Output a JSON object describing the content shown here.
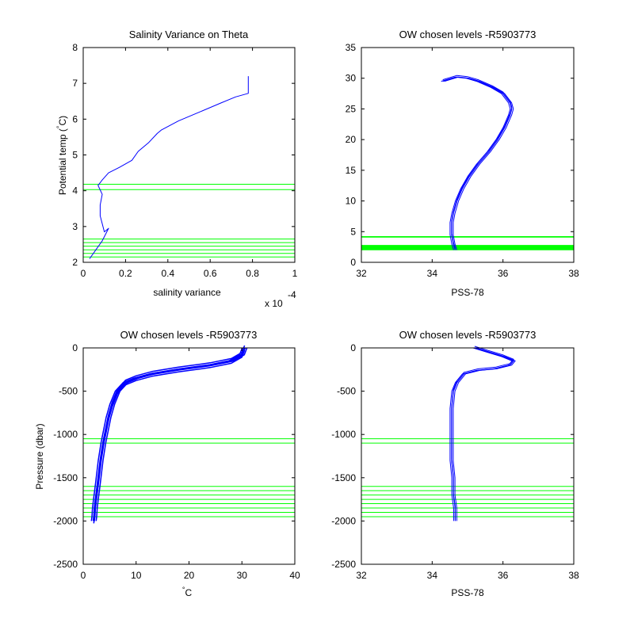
{
  "chart_data": [
    {
      "type": "line",
      "title": "Salinity Variance on Theta",
      "xlabel": "salinity variance",
      "ylabel": "Potential temp (°C)",
      "ylabel_parts": [
        "Potential temp (",
        "°",
        "C)"
      ],
      "xlim": [
        0,
        1
      ],
      "ylim": [
        2,
        8
      ],
      "xticks": [
        0,
        0.2,
        0.4,
        0.6,
        0.8,
        1
      ],
      "xtick_labels": [
        "0",
        "0.2",
        "0.4",
        "0.6",
        "0.8",
        "1"
      ],
      "yticks": [
        2,
        3,
        4,
        5,
        6,
        7,
        8
      ],
      "ytick_labels": [
        "2",
        "3",
        "4",
        "5",
        "6",
        "7",
        "8"
      ],
      "x_multiplier": "x 10",
      "x_multiplier_exp": "-4",
      "grid": false,
      "series": [
        {
          "color": "#0000ff",
          "x": [
            0.03,
            0.06,
            0.09,
            0.12,
            0.1,
            0.08,
            0.08,
            0.09,
            0.07,
            0.09,
            0.12,
            0.17,
            0.23,
            0.26,
            0.31,
            0.35,
            0.37,
            0.45,
            0.55,
            0.65,
            0.72,
            0.78,
            0.78
          ],
          "y": [
            2.1,
            2.35,
            2.6,
            2.95,
            2.85,
            3.3,
            3.6,
            3.9,
            4.15,
            4.3,
            4.5,
            4.65,
            4.85,
            5.1,
            5.35,
            5.6,
            5.7,
            5.95,
            6.2,
            6.45,
            6.62,
            6.72,
            7.2
          ]
        }
      ],
      "hlines": [
        2.15,
        2.25,
        2.35,
        2.45,
        2.55,
        2.65,
        4.03,
        4.18
      ],
      "hline_color": "#00ff00"
    },
    {
      "type": "line",
      "title": "OW chosen levels -R5903773",
      "xlabel": "PSS-78",
      "ylabel": "",
      "xlim": [
        32,
        38
      ],
      "ylim": [
        0,
        35
      ],
      "xticks": [
        32,
        34,
        36,
        38
      ],
      "xtick_labels": [
        "32",
        "34",
        "36",
        "38"
      ],
      "yticks": [
        0,
        5,
        10,
        15,
        20,
        25,
        30,
        35
      ],
      "ytick_labels": [
        "0",
        "5",
        "10",
        "15",
        "20",
        "25",
        "30",
        "35"
      ],
      "grid": false,
      "series": [
        {
          "color": "#0000ff",
          "x": [
            34.65,
            34.6,
            34.55,
            34.55,
            34.6,
            34.7,
            34.85,
            35.05,
            35.3,
            35.6,
            35.85,
            36.05,
            36.2,
            36.25,
            36.2,
            36.0,
            35.7,
            35.3,
            35.0,
            34.7,
            34.3
          ],
          "y": [
            2.0,
            3.0,
            4.5,
            6.5,
            8.0,
            10.0,
            12.0,
            14.0,
            16.0,
            18.0,
            20.0,
            22.0,
            24.0,
            25.0,
            26.0,
            27.5,
            28.5,
            29.5,
            30.0,
            30.2,
            29.5
          ]
        }
      ],
      "hlines": [
        2.1,
        2.2,
        2.3,
        2.4,
        2.5,
        2.6,
        2.7,
        4.1,
        4.2
      ],
      "hline_color": "#00ff00"
    },
    {
      "type": "line",
      "title": "OW chosen levels -R5903773",
      "xlabel": "°C",
      "xlabel_parts": [
        "°",
        "C"
      ],
      "ylabel": "Pressure (dbar)",
      "xlim": [
        0,
        40
      ],
      "ylim": [
        -2500,
        0
      ],
      "xticks": [
        0,
        10,
        20,
        30,
        40
      ],
      "xtick_labels": [
        "0",
        "10",
        "20",
        "30",
        "40"
      ],
      "yticks": [
        -2500,
        -2000,
        -1500,
        -1000,
        -500,
        0
      ],
      "ytick_labels": [
        "-2500",
        "-2000",
        "-1500",
        "-1000",
        "-500",
        "0"
      ],
      "grid": false,
      "series": [
        {
          "color": "#0000ff",
          "x": [
            30.5,
            30.0,
            28.0,
            24.0,
            18.0,
            13.0,
            10.0,
            8.0,
            6.5,
            5.5,
            4.8,
            4.3,
            3.8,
            3.3,
            2.9,
            2.6,
            2.4,
            2.2,
            2.1,
            2.0
          ],
          "y": [
            0,
            -80,
            -150,
            -200,
            -250,
            -300,
            -350,
            -400,
            -500,
            -650,
            -800,
            -950,
            -1100,
            -1300,
            -1500,
            -1650,
            -1750,
            -1850,
            -1950,
            -2000
          ]
        }
      ],
      "hlines": [
        -1050,
        -1100,
        -1600,
        -1650,
        -1700,
        -1750,
        -1800,
        -1850,
        -1900,
        -1950
      ],
      "hline_color": "#00ff00"
    },
    {
      "type": "line",
      "title": "OW chosen levels -R5903773",
      "xlabel": "PSS-78",
      "ylabel": "",
      "xlim": [
        32,
        38
      ],
      "ylim": [
        -2500,
        0
      ],
      "xticks": [
        32,
        34,
        36,
        38
      ],
      "xtick_labels": [
        "32",
        "34",
        "36",
        "38"
      ],
      "yticks": [
        -2500,
        -2000,
        -1500,
        -1000,
        -500,
        0
      ],
      "ytick_labels": [
        "-2500",
        "-2000",
        "-1500",
        "-1000",
        "-500",
        "0"
      ],
      "grid": false,
      "series": [
        {
          "color": "#0000ff",
          "x": [
            35.2,
            35.6,
            36.0,
            36.3,
            36.2,
            35.8,
            35.3,
            34.9,
            34.7,
            34.6,
            34.55,
            34.55,
            34.55,
            34.6,
            34.6,
            34.65,
            34.65
          ],
          "y": [
            0,
            -50,
            -100,
            -150,
            -200,
            -240,
            -260,
            -300,
            -400,
            -500,
            -700,
            -1000,
            -1300,
            -1500,
            -1700,
            -1850,
            -2000
          ]
        }
      ],
      "hlines": [
        -1050,
        -1100,
        -1600,
        -1650,
        -1700,
        -1750,
        -1800,
        -1850,
        -1900,
        -1950
      ],
      "hline_color": "#00ff00"
    }
  ]
}
